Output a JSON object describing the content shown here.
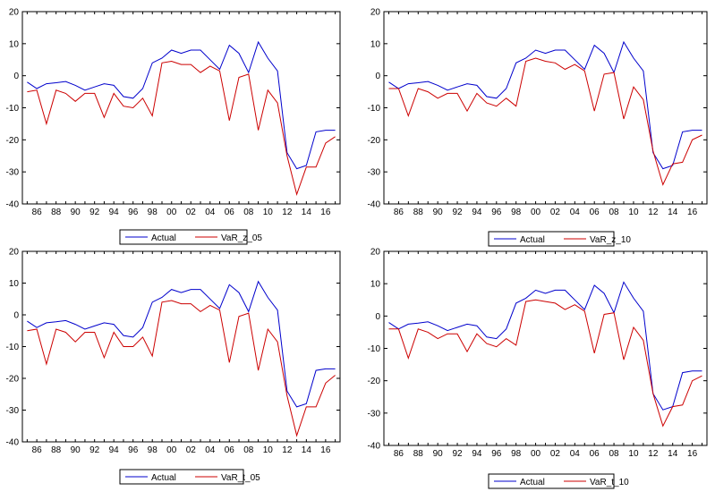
{
  "colors": {
    "actual": "#0000cc",
    "var": "#cc0000",
    "frame": "#000000",
    "background": "#ffffff"
  },
  "x_tick_labels": [
    "86",
    "88",
    "90",
    "92",
    "94",
    "96",
    "98",
    "00",
    "02",
    "04",
    "06",
    "08",
    "10",
    "12",
    "14",
    "16"
  ],
  "y_tick_labels": [
    "20",
    "10",
    "0",
    "-10",
    "-20",
    "-30",
    "-40"
  ],
  "chart_data": [
    {
      "type": "line",
      "title": "",
      "x": [
        1985,
        1986,
        1987,
        1988,
        1989,
        1990,
        1991,
        1992,
        1993,
        1994,
        1995,
        1996,
        1997,
        1998,
        1999,
        2000,
        2001,
        2002,
        2003,
        2004,
        2005,
        2006,
        2007,
        2008,
        2009,
        2010,
        2011,
        2012,
        2013,
        2014,
        2015,
        2016,
        2017
      ],
      "xlim": [
        1984.5,
        2017.5
      ],
      "ylim": [
        -40,
        20
      ],
      "grid": false,
      "legend_position": "below",
      "series": [
        {
          "name": "Actual",
          "values": [
            -2,
            -4,
            -2.5,
            -2.2,
            -1.8,
            -3,
            -4.5,
            -3.5,
            -2.5,
            -3,
            -6.5,
            -7,
            -4,
            4,
            5.5,
            8,
            7,
            8,
            8,
            5,
            2,
            9.5,
            7,
            1,
            10.5,
            5.5,
            1.5,
            -24,
            -29,
            -28,
            -17.5,
            -17,
            -17
          ]
        },
        {
          "name": "VaR_z_05",
          "values": [
            -5,
            -4.5,
            -15,
            -4.5,
            -5.5,
            -8,
            -5.5,
            -5.5,
            -13,
            -5.5,
            -9.5,
            -10,
            -7,
            -12.5,
            4,
            4.5,
            3.5,
            3.5,
            1,
            3,
            1.5,
            -14,
            -0.5,
            0.5,
            -17,
            -4.5,
            -8.5,
            -25,
            -37,
            -28.5,
            -28.5,
            -21,
            -19
          ]
        }
      ]
    },
    {
      "type": "line",
      "title": "",
      "x": [
        1985,
        1986,
        1987,
        1988,
        1989,
        1990,
        1991,
        1992,
        1993,
        1994,
        1995,
        1996,
        1997,
        1998,
        1999,
        2000,
        2001,
        2002,
        2003,
        2004,
        2005,
        2006,
        2007,
        2008,
        2009,
        2010,
        2011,
        2012,
        2013,
        2014,
        2015,
        2016,
        2017
      ],
      "xlim": [
        1984.5,
        2017.5
      ],
      "ylim": [
        -40,
        20
      ],
      "grid": false,
      "legend_position": "below",
      "series": [
        {
          "name": "Actual",
          "values": [
            -2,
            -4,
            -2.5,
            -2.2,
            -1.8,
            -3,
            -4.5,
            -3.5,
            -2.5,
            -3,
            -6.5,
            -7,
            -4,
            4,
            5.5,
            8,
            7,
            8,
            8,
            5,
            2,
            9.5,
            7,
            1,
            10.5,
            5.5,
            1.5,
            -24,
            -29,
            -28,
            -17.5,
            -17,
            -17
          ]
        },
        {
          "name": "VaR_z_10",
          "values": [
            -4,
            -4,
            -12.5,
            -4,
            -5,
            -7,
            -5.5,
            -5.5,
            -11,
            -5.5,
            -8.5,
            -9.5,
            -7,
            -9.5,
            4.5,
            5.5,
            4.5,
            4,
            2,
            3.5,
            1.5,
            -11,
            0.5,
            1,
            -13.5,
            -3.5,
            -7.5,
            -23.5,
            -34,
            -27.5,
            -27,
            -20,
            -18.5
          ]
        }
      ]
    },
    {
      "type": "line",
      "title": "",
      "x": [
        1985,
        1986,
        1987,
        1988,
        1989,
        1990,
        1991,
        1992,
        1993,
        1994,
        1995,
        1996,
        1997,
        1998,
        1999,
        2000,
        2001,
        2002,
        2003,
        2004,
        2005,
        2006,
        2007,
        2008,
        2009,
        2010,
        2011,
        2012,
        2013,
        2014,
        2015,
        2016,
        2017
      ],
      "xlim": [
        1984.5,
        2017.5
      ],
      "ylim": [
        -40,
        20
      ],
      "grid": false,
      "legend_position": "below",
      "series": [
        {
          "name": "Actual",
          "values": [
            -2,
            -4,
            -2.5,
            -2.2,
            -1.8,
            -3,
            -4.5,
            -3.5,
            -2.5,
            -3,
            -6.5,
            -7,
            -4,
            4,
            5.5,
            8,
            7,
            8,
            8,
            5,
            2,
            9.5,
            7,
            1,
            10.5,
            5.5,
            1.5,
            -24,
            -29,
            -28,
            -17.5,
            -17,
            -17
          ]
        },
        {
          "name": "VaR_t_05",
          "values": [
            -5,
            -4.5,
            -15.5,
            -4.5,
            -5.5,
            -8.5,
            -5.5,
            -5.5,
            -13.5,
            -5.5,
            -10,
            -10,
            -7,
            -13,
            4,
            4.5,
            3.5,
            3.5,
            1,
            3,
            1.5,
            -15,
            -0.5,
            0.5,
            -17.5,
            -4.5,
            -8.5,
            -25.5,
            -38,
            -29,
            -29,
            -21.5,
            -19
          ]
        }
      ]
    },
    {
      "type": "line",
      "title": "",
      "x": [
        1985,
        1986,
        1987,
        1988,
        1989,
        1990,
        1991,
        1992,
        1993,
        1994,
        1995,
        1996,
        1997,
        1998,
        1999,
        2000,
        2001,
        2002,
        2003,
        2004,
        2005,
        2006,
        2007,
        2008,
        2009,
        2010,
        2011,
        2012,
        2013,
        2014,
        2015,
        2016,
        2017
      ],
      "xlim": [
        1984.5,
        2017.5
      ],
      "ylim": [
        -40,
        20
      ],
      "grid": false,
      "legend_position": "below",
      "series": [
        {
          "name": "Actual",
          "values": [
            -2,
            -4,
            -2.5,
            -2.2,
            -1.8,
            -3,
            -4.5,
            -3.5,
            -2.5,
            -3,
            -6.5,
            -7,
            -4,
            4,
            5.5,
            8,
            7,
            8,
            8,
            5,
            2,
            9.5,
            7,
            1,
            10.5,
            5.5,
            1.5,
            -24,
            -29,
            -28,
            -17.5,
            -17,
            -17
          ]
        },
        {
          "name": "VaR_t_10",
          "values": [
            -4,
            -4,
            -13,
            -4,
            -5,
            -7,
            -5.5,
            -5.5,
            -11,
            -5.5,
            -8.5,
            -9.5,
            -7,
            -9,
            4.5,
            5,
            4.5,
            4,
            2,
            3.5,
            1.5,
            -11.5,
            0.5,
            1,
            -13.5,
            -3.5,
            -7.5,
            -24,
            -34,
            -28,
            -27.5,
            -20,
            -18.5
          ]
        }
      ]
    }
  ]
}
